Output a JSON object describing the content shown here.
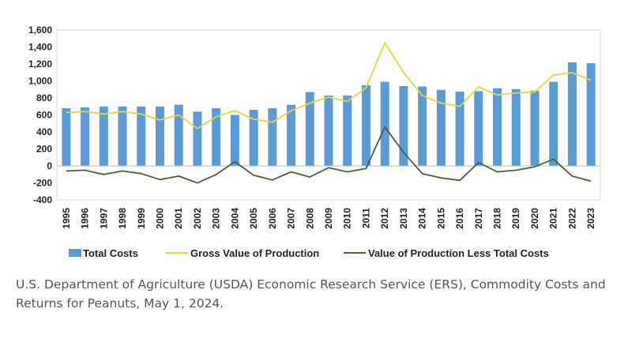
{
  "chart_data": {
    "type": "bar",
    "categories": [
      "1995",
      "1996",
      "1997",
      "1998",
      "1999",
      "2000",
      "2001",
      "2002",
      "2003",
      "2004",
      "2005",
      "2006",
      "2007",
      "2008",
      "2009",
      "2010",
      "2011",
      "2012",
      "2013",
      "2014",
      "2015",
      "2016",
      "2017",
      "2018",
      "2019",
      "2020",
      "2021",
      "2022",
      "2023"
    ],
    "y_ticks": [
      "1,600",
      "1,400",
      "1,200",
      "1,000",
      "800",
      "600",
      "400",
      "200",
      "0",
      "-200",
      "-400"
    ],
    "ylim": [
      -400,
      1600
    ],
    "grid": false,
    "legend_position": "bottom",
    "series": [
      {
        "name": "Total Costs",
        "type": "bar",
        "color": "#5b9bd5",
        "values": [
          680,
          690,
          700,
          700,
          700,
          700,
          720,
          640,
          680,
          600,
          660,
          680,
          720,
          870,
          830,
          830,
          950,
          990,
          940,
          935,
          895,
          875,
          880,
          915,
          905,
          885,
          990,
          1220,
          1210
        ]
      },
      {
        "name": "Gross Value of Production",
        "type": "line",
        "color": "#e6d63c",
        "values": [
          630,
          640,
          610,
          640,
          610,
          540,
          600,
          440,
          580,
          650,
          550,
          515,
          650,
          740,
          810,
          760,
          920,
          1450,
          1100,
          830,
          740,
          700,
          930,
          835,
          860,
          870,
          1070,
          1100,
          1010
        ]
      },
      {
        "name": "Value of Production Less Total Costs",
        "type": "line",
        "color": "#4a5e3c",
        "values": [
          -60,
          -50,
          -100,
          -60,
          -90,
          -160,
          -120,
          -200,
          -100,
          50,
          -110,
          -165,
          -70,
          -130,
          -20,
          -70,
          -30,
          460,
          160,
          -90,
          -140,
          -170,
          40,
          -70,
          -50,
          -10,
          80,
          -120,
          -180
        ]
      }
    ]
  },
  "caption": "U.S. Department of Agriculture (USDA) Economic Research Service (ERS), Commodity Costs and Returns for Peanuts, May 1, 2024."
}
